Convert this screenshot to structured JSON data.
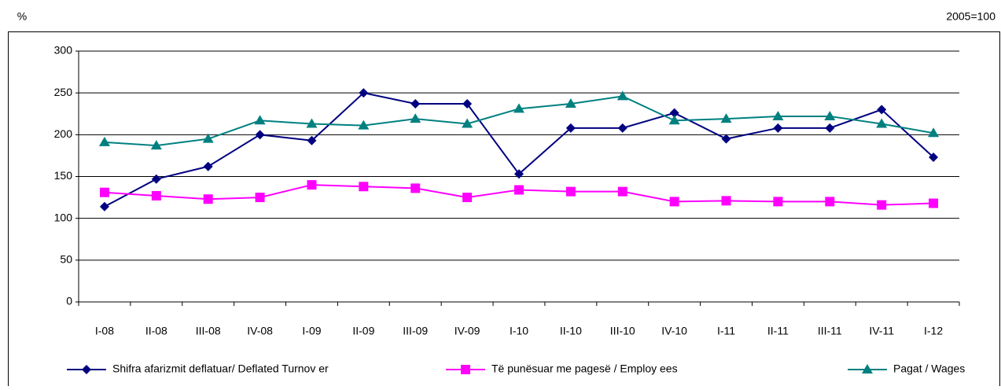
{
  "chart_data": {
    "type": "line",
    "y_label": "%",
    "note": "2005=100",
    "categories": [
      "I-08",
      "II-08",
      "III-08",
      "IV-08",
      "I-09",
      "II-09",
      "III-09",
      "IV-09",
      "I-10",
      "II-10",
      "III-10",
      "IV-10",
      "I-11",
      "II-11",
      "III-11",
      "IV-11",
      "I-12"
    ],
    "series": [
      {
        "name": "Shifra afarizmit deflatuar/ Deflated Turnov er",
        "color": "#000080",
        "marker": "diamond",
        "values": [
          114,
          147,
          162,
          200,
          193,
          250,
          237,
          237,
          153,
          208,
          208,
          226,
          195,
          208,
          208,
          230,
          173
        ]
      },
      {
        "name": "Të punësuar me pagesë / Employ ees",
        "color": "#ff00ff",
        "marker": "square",
        "values": [
          131,
          127,
          123,
          125,
          140,
          138,
          136,
          125,
          134,
          132,
          132,
          120,
          121,
          120,
          120,
          116,
          118
        ]
      },
      {
        "name": "Pagat / Wages",
        "color": "#008080",
        "marker": "triangle",
        "values": [
          191,
          187,
          195,
          217,
          213,
          211,
          219,
          213,
          231,
          237,
          246,
          217,
          219,
          222,
          222,
          213,
          202
        ]
      }
    ],
    "ylim": [
      0,
      300
    ],
    "yticks": [
      0,
      50,
      100,
      150,
      200,
      250,
      300
    ],
    "grid": true,
    "legend": "bottom"
  }
}
